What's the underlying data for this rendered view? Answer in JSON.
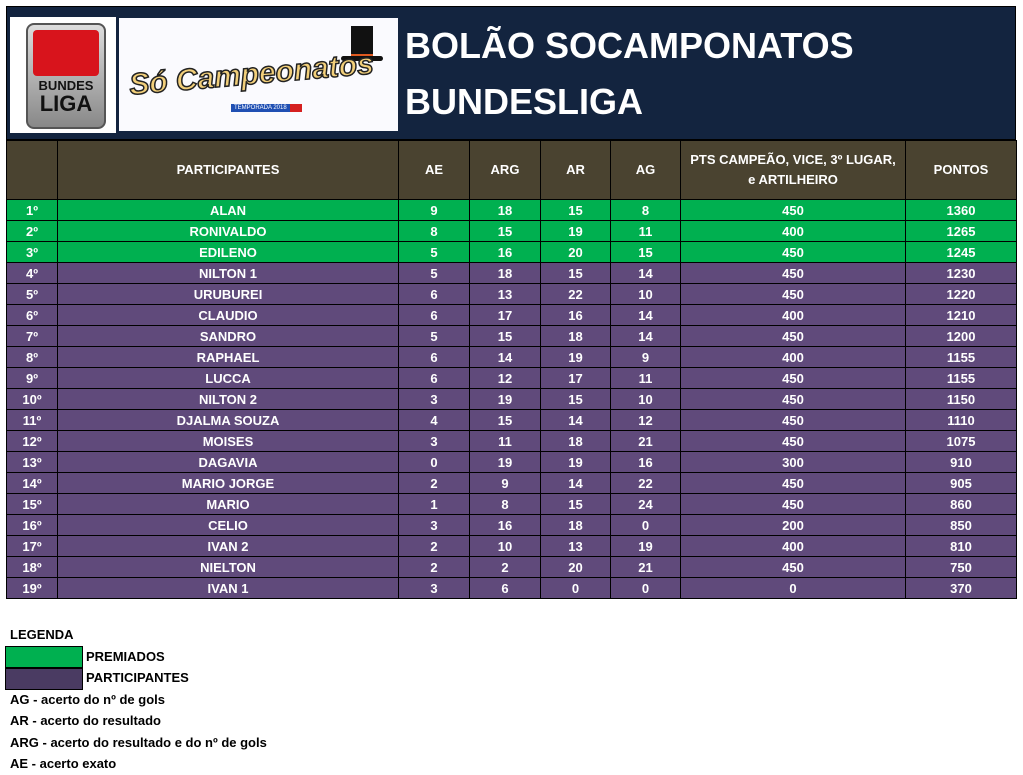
{
  "header": {
    "title_line1": "BOLÃO SOCAMPONATOS",
    "title_line2": "BUNDESLIGA",
    "logo_left_text": "BUNDES LIGA",
    "logo_right_text": "Só Campeonatos",
    "logo_right_badge": "TEMPORADA 2018"
  },
  "table": {
    "columns": [
      "",
      "PARTICIPANTES",
      "AE",
      "ARG",
      "AR",
      "AG",
      "PTS CAMPEÃO, VICE, 3º LUGAR, e ARTILHEIRO",
      "PONTOS"
    ],
    "colors": {
      "premiados": "#00b050",
      "participantes": "#604a7b",
      "header": "#4a4330",
      "banner": "#13243f"
    },
    "rows": [
      [
        "1º",
        "ALAN",
        "9",
        "18",
        "15",
        "8",
        "450",
        "1360",
        "g"
      ],
      [
        "2º",
        "RONIVALDO",
        "8",
        "15",
        "19",
        "11",
        "400",
        "1265",
        "g"
      ],
      [
        "3º",
        "EDILENO",
        "5",
        "16",
        "20",
        "15",
        "450",
        "1245",
        "g"
      ],
      [
        "4º",
        "NILTON 1",
        "5",
        "18",
        "15",
        "14",
        "450",
        "1230",
        "p"
      ],
      [
        "5º",
        "URUBUREI",
        "6",
        "13",
        "22",
        "10",
        "450",
        "1220",
        "p"
      ],
      [
        "6º",
        "CLAUDIO",
        "6",
        "17",
        "16",
        "14",
        "400",
        "1210",
        "p"
      ],
      [
        "7º",
        "SANDRO",
        "5",
        "15",
        "18",
        "14",
        "450",
        "1200",
        "p"
      ],
      [
        "8º",
        "RAPHAEL",
        "6",
        "14",
        "19",
        "9",
        "400",
        "1155",
        "p"
      ],
      [
        "9º",
        "LUCCA",
        "6",
        "12",
        "17",
        "11",
        "450",
        "1155",
        "p"
      ],
      [
        "10º",
        "NILTON 2",
        "3",
        "19",
        "15",
        "10",
        "450",
        "1150",
        "p"
      ],
      [
        "11º",
        "DJALMA SOUZA",
        "4",
        "15",
        "14",
        "12",
        "450",
        "1110",
        "p"
      ],
      [
        "12º",
        "MOISES",
        "3",
        "11",
        "18",
        "21",
        "450",
        "1075",
        "p"
      ],
      [
        "13º",
        "DAGAVIA",
        "0",
        "19",
        "19",
        "16",
        "300",
        "910",
        "p"
      ],
      [
        "14º",
        "MARIO JORGE",
        "2",
        "9",
        "14",
        "22",
        "450",
        "905",
        "p"
      ],
      [
        "15º",
        "MARIO",
        "1",
        "8",
        "15",
        "24",
        "450",
        "860",
        "p"
      ],
      [
        "16º",
        "CELIO",
        "3",
        "16",
        "18",
        "0",
        "200",
        "850",
        "p"
      ],
      [
        "17º",
        "IVAN 2",
        "2",
        "10",
        "13",
        "19",
        "400",
        "810",
        "p"
      ],
      [
        "18º",
        "NIELTON",
        "2",
        "2",
        "20",
        "21",
        "450",
        "750",
        "p"
      ],
      [
        "19º",
        "IVAN 1",
        "3",
        "6",
        "0",
        "0",
        "0",
        "370",
        "p"
      ]
    ]
  },
  "legend": {
    "title": "LEGENDA",
    "premiados": "PREMIADOS",
    "participantes": "PARTICIPANTES",
    "ag": "AG - acerto do nº de gols",
    "ar": "AR - acerto do resultado",
    "arg": "ARG - acerto do resultado e do nº de gols",
    "ae": "AE - acerto exato"
  }
}
